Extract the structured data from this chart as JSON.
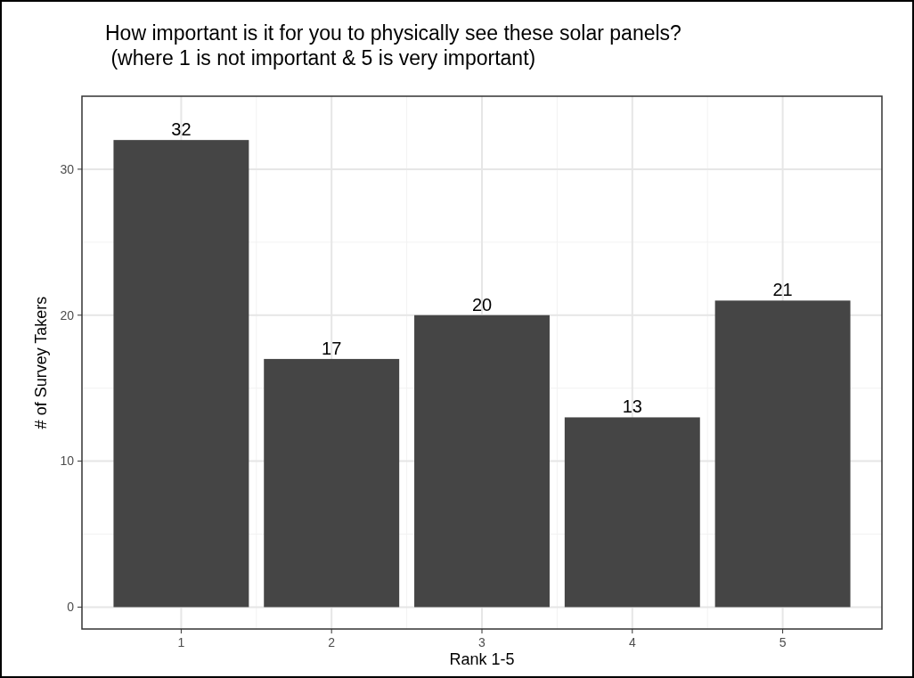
{
  "chart_data": {
    "type": "bar",
    "title": "How important is it for you to physically see these solar panels?\n (where 1 is not important & 5 is very important)",
    "xlabel": "Rank 1-5",
    "ylabel": "# of Survey Takers",
    "categories": [
      "1",
      "2",
      "3",
      "4",
      "5"
    ],
    "values": [
      32,
      17,
      20,
      13,
      21
    ],
    "color": "#454545",
    "ylim": [
      -1.5,
      35
    ],
    "yticks": [
      0,
      10,
      20,
      30
    ],
    "grid": true,
    "data_labels": true
  }
}
